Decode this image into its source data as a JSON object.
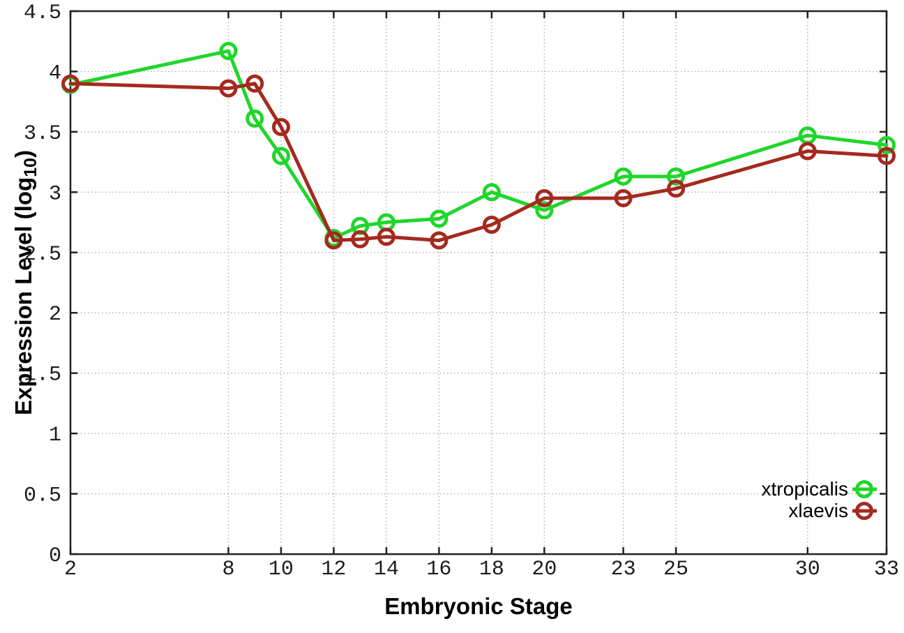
{
  "chart_data": {
    "type": "line",
    "title": "",
    "xlabel": "Embryonic Stage",
    "ylabel": "Expression Level (log10)",
    "ylabel_parts": {
      "pre": "Expression Level (log",
      "sub": "10",
      "post": ")"
    },
    "xlim": [
      2,
      33
    ],
    "ylim": [
      0,
      4.5
    ],
    "grid": true,
    "legend_position": "bottom-right",
    "x": [
      2,
      8,
      9,
      10,
      12,
      13,
      14,
      16,
      18,
      20,
      23,
      25,
      30,
      33
    ],
    "series": [
      {
        "name": "xtropicalis",
        "color": "#1fd62b",
        "values": [
          3.89,
          4.17,
          3.61,
          3.3,
          2.62,
          2.72,
          2.75,
          2.78,
          3.0,
          2.85,
          3.13,
          3.13,
          3.47,
          3.39
        ]
      },
      {
        "name": "xlaevis",
        "color": "#a5291f",
        "values": [
          3.9,
          3.86,
          3.9,
          3.54,
          2.6,
          2.61,
          2.63,
          2.6,
          2.73,
          2.95,
          2.95,
          3.03,
          3.34,
          3.3
        ]
      }
    ],
    "xticks": {
      "values": [
        2,
        8,
        10,
        12,
        14,
        16,
        18,
        20,
        23,
        25,
        30,
        33
      ],
      "labels": [
        "2",
        "8",
        "10",
        "12",
        "14",
        "16",
        "18",
        "20",
        "23",
        "25",
        "30",
        "33"
      ]
    },
    "yticks": {
      "values": [
        0,
        0.5,
        1,
        1.5,
        2,
        2.5,
        3,
        3.5,
        4,
        4.5
      ],
      "labels": [
        "0",
        "0.5",
        "1",
        "1.5",
        "2",
        "2.5",
        "3",
        "3.5",
        "4",
        "4.5"
      ]
    }
  },
  "style_colors": {
    "grid": "#ababab",
    "border": "#212121",
    "text": "#000000"
  }
}
